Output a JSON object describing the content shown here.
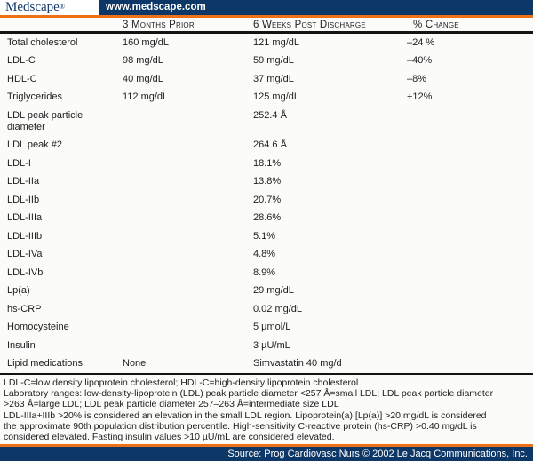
{
  "colors": {
    "navy": "#0d3766",
    "orange": "#ee7118",
    "rule": "#141414",
    "background": "#fbfbfa",
    "logo_text": "#12386b"
  },
  "header": {
    "logo_name": "Medscape",
    "logo_reg": "®",
    "url": "www.medscape.com"
  },
  "table": {
    "columns": [
      "",
      "3 Months Prior",
      "6 Weeks Post Discharge",
      "% Change"
    ],
    "rows": [
      {
        "label": "Total cholesterol",
        "prior": "160 mg/dL",
        "post": "121 mg/dL",
        "change": "–24 %"
      },
      {
        "label": "LDL-C",
        "prior": "98 mg/dL",
        "post": "59 mg/dL",
        "change": "–40%"
      },
      {
        "label": "HDL-C",
        "prior": "40 mg/dL",
        "post": "37 mg/dL",
        "change": "–8%"
      },
      {
        "label": "Triglycerides",
        "prior": "112 mg/dL",
        "post": "125 mg/dL",
        "change": "+12%"
      },
      {
        "label": "LDL peak particle diameter",
        "prior": "",
        "post": "252.4 Å",
        "change": ""
      },
      {
        "label": "LDL peak #2",
        "prior": "",
        "post": "264.6 Å",
        "change": ""
      },
      {
        "label": "LDL-I",
        "prior": "",
        "post": "18.1%",
        "change": ""
      },
      {
        "label": "LDL-IIa",
        "prior": "",
        "post": "13.8%",
        "change": ""
      },
      {
        "label": "LDL-IIb",
        "prior": "",
        "post": "20.7%",
        "change": ""
      },
      {
        "label": "LDL-IIIa",
        "prior": "",
        "post": "28.6%",
        "change": ""
      },
      {
        "label": "LDL-IIIb",
        "prior": "",
        "post": "5.1%",
        "change": ""
      },
      {
        "label": "LDL-IVa",
        "prior": "",
        "post": "4.8%",
        "change": ""
      },
      {
        "label": "LDL-IVb",
        "prior": "",
        "post": "8.9%",
        "change": ""
      },
      {
        "label": "Lp(a)",
        "prior": "",
        "post": "29 mg/dL",
        "change": ""
      },
      {
        "label": "hs-CRP",
        "prior": "",
        "post": "0.02 mg/dL",
        "change": ""
      },
      {
        "label": "Homocysteine",
        "prior": "",
        "post": "5 µmol/L",
        "change": ""
      },
      {
        "label": "Insulin",
        "prior": "",
        "post": "3 µU/mL",
        "change": ""
      },
      {
        "label": "Lipid medications",
        "prior": "None",
        "post": "Simvastatin 40 mg/d",
        "change": ""
      }
    ]
  },
  "footnotes": {
    "lines": [
      "LDL-C=low density lipoprotein cholesterol; HDL-C=high-density lipoprotein cholesterol",
      "Laboratory ranges: low-density-lipoprotein (LDL) peak particle diameter <257 Å=small LDL; LDL peak particle diameter",
      ">263 Å=large LDL; LDL peak particle diameter 257–263 Å=intermediate size LDL",
      "LDL-IIIa+IIIb >20% is considered an elevation in the small LDL region. Lipoprotein(a) [Lp(a)] >20 mg/dL is considered",
      "the approximate 90th population distribution percentile. High-sensitivity C-reactive protein (hs-CRP) >0.40 mg/dL is",
      "considered elevated. Fasting insulin values >10 µU/mL are considered elevated."
    ]
  },
  "footer": {
    "source": "Source: Prog Cardiovasc Nurs © 2002 Le Jacq Communications, Inc."
  }
}
